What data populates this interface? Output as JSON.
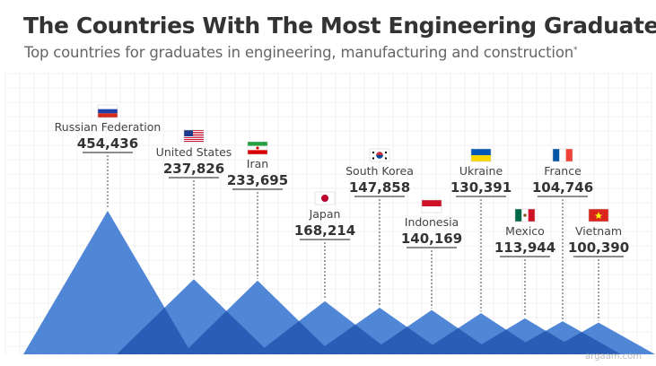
{
  "header": {
    "title": "The Countries With The Most Engineering Graduates",
    "subtitle": "Top countries for graduates in engineering, manufacturing and construction",
    "subtitle_mark": "*"
  },
  "watermark": "argaam.com",
  "colors": {
    "background_grid": "#f0f0f0",
    "peak": "#4f86d6",
    "overlap": "#2a5db5",
    "text": "#333333",
    "label": "#444444"
  },
  "chart_data": {
    "type": "bar",
    "style": "overlapping triangles",
    "title": "The Countries With The Most Engineering Graduates",
    "subtitle": "Top countries for graduates in engineering, manufacturing and construction",
    "categories": [
      "Russian Federation",
      "United States",
      "Iran",
      "Japan",
      "South Korea",
      "Indonesia",
      "Ukraine",
      "Mexico",
      "France",
      "Vietnam"
    ],
    "values": [
      454436,
      237826,
      233695,
      168214,
      147858,
      140169,
      130391,
      113944,
      104746,
      100390
    ],
    "value_labels": [
      "454,436",
      "237,826",
      "233,695",
      "168,214",
      "147,858",
      "140,169",
      "130,391",
      "113,944",
      "104,746",
      "100,390"
    ],
    "flags": [
      "flag-russia",
      "flag-usa",
      "flag-iran",
      "flag-japan",
      "flag-south-korea",
      "flag-indonesia",
      "flag-ukraine",
      "flag-mexico",
      "flag-france",
      "flag-vietnam"
    ],
    "xlabel": "",
    "ylabel": "",
    "legend": "none",
    "grid": true
  }
}
